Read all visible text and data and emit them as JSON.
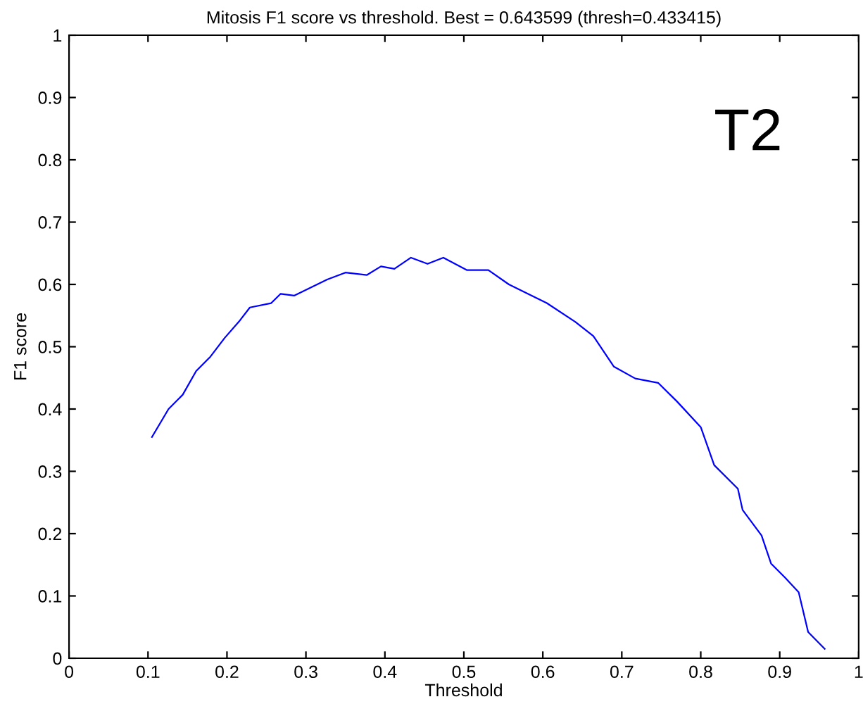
{
  "chart_data": {
    "type": "line",
    "title": "Mitosis F1 score vs threshold. Best = 0.643599 (thresh=0.433415)",
    "xlabel": "Threshold",
    "ylabel": "F1 score",
    "annotations": [
      "T2"
    ],
    "series": [
      {
        "color": "#0000ff",
        "x": [
          0.105,
          0.126,
          0.144,
          0.161,
          0.179,
          0.197,
          0.215,
          0.229,
          0.256,
          0.268,
          0.285,
          0.327,
          0.35,
          0.377,
          0.395,
          0.412,
          0.433,
          0.454,
          0.474,
          0.504,
          0.531,
          0.557,
          0.605,
          0.641,
          0.664,
          0.69,
          0.717,
          0.746,
          0.77,
          0.8,
          0.817,
          0.847,
          0.853,
          0.877,
          0.889,
          0.907,
          0.924,
          0.936,
          0.957
        ],
        "values": [
          0.355,
          0.4,
          0.423,
          0.461,
          0.484,
          0.514,
          0.54,
          0.563,
          0.57,
          0.585,
          0.582,
          0.608,
          0.619,
          0.615,
          0.629,
          0.625,
          0.643,
          0.633,
          0.643,
          0.623,
          0.623,
          0.6,
          0.57,
          0.54,
          0.517,
          0.468,
          0.449,
          0.442,
          0.412,
          0.371,
          0.31,
          0.272,
          0.238,
          0.197,
          0.152,
          0.129,
          0.106,
          0.042,
          0.015
        ]
      }
    ],
    "xlim": [
      0,
      1
    ],
    "ylim": [
      0,
      1
    ],
    "xticks": [
      0,
      0.1,
      0.2,
      0.3,
      0.4,
      0.5,
      0.6,
      0.7,
      0.8,
      0.9,
      1
    ],
    "yticks": [
      0,
      0.1,
      0.2,
      0.3,
      0.4,
      0.5,
      0.6,
      0.7,
      0.8,
      0.9,
      1
    ],
    "grid": false,
    "legend": false,
    "marker": "none",
    "line_style": "solid"
  }
}
